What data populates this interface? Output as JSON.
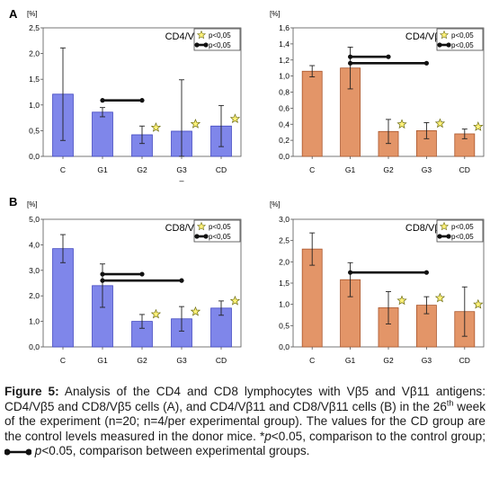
{
  "panel_letters": [
    "A",
    "B"
  ],
  "legend": {
    "star": "p<0,05",
    "connector": "p<0,05"
  },
  "chart_data": [
    {
      "type": "bar",
      "title": "CD4/Vβ5",
      "unit": "[%]",
      "color": "#7f86ea",
      "categories": [
        "C",
        "G1",
        "G2",
        "G3",
        "CD"
      ],
      "values": [
        1.21,
        0.86,
        0.42,
        0.49,
        0.59
      ],
      "errors": [
        0.9,
        0.09,
        0.17,
        1.0,
        0.4
      ],
      "ylim": [
        0,
        2.5
      ],
      "yticks": [
        "0,0",
        "0,5",
        "1,0",
        "1,5",
        "2,0",
        "2,5"
      ],
      "stars": [
        false,
        false,
        true,
        true,
        true
      ],
      "connectors": [
        {
          "from": "G1",
          "to": "G2"
        }
      ],
      "extra_label": "–"
    },
    {
      "type": "bar",
      "title": "CD4/Vβ11",
      "unit": "[%]",
      "color": "#e39568",
      "categories": [
        "C",
        "G1",
        "G2",
        "G3",
        "CD"
      ],
      "values": [
        1.06,
        1.1,
        0.31,
        0.32,
        0.28
      ],
      "errors": [
        0.07,
        0.26,
        0.15,
        0.1,
        0.06
      ],
      "ylim": [
        0,
        1.6
      ],
      "yticks": [
        "0,0",
        "0,2",
        "0,4",
        "0,6",
        "0,8",
        "1,0",
        "1,2",
        "1,4",
        "1,6"
      ],
      "stars": [
        false,
        false,
        true,
        true,
        true
      ],
      "connectors": [
        {
          "from": "G1",
          "to": "G2"
        },
        {
          "from": "G1",
          "to": "G3"
        }
      ]
    },
    {
      "type": "bar",
      "title": "CD8/Vβ5",
      "unit": "[%]",
      "color": "#7f86ea",
      "categories": [
        "C",
        "G1",
        "G2",
        "G3",
        "CD"
      ],
      "values": [
        3.85,
        2.4,
        1.0,
        1.1,
        1.52
      ],
      "errors": [
        0.55,
        0.85,
        0.27,
        0.48,
        0.28
      ],
      "ylim": [
        0,
        5
      ],
      "yticks": [
        "0,0",
        "1,0",
        "2,0",
        "3,0",
        "4,0",
        "5,0"
      ],
      "stars": [
        false,
        false,
        true,
        true,
        true
      ],
      "connectors": [
        {
          "from": "G1",
          "to": "G2"
        },
        {
          "from": "G1",
          "to": "G3"
        }
      ]
    },
    {
      "type": "bar",
      "title": "CD8/Vβ11",
      "unit": "[%]",
      "color": "#e39568",
      "categories": [
        "C",
        "G1",
        "G2",
        "G3",
        "CD"
      ],
      "values": [
        2.3,
        1.58,
        0.92,
        0.98,
        0.83
      ],
      "errors": [
        0.38,
        0.4,
        0.38,
        0.2,
        0.58
      ],
      "ylim": [
        0,
        3
      ],
      "yticks": [
        "0,0",
        "0,5",
        "1,0",
        "1,5",
        "2,0",
        "2,5",
        "3,0"
      ],
      "stars": [
        false,
        false,
        true,
        true,
        true
      ],
      "connectors": [
        {
          "from": "G1",
          "to": "G3"
        }
      ]
    }
  ],
  "caption": {
    "label": "Figure 5:",
    "part1": " Analysis of the CD4 and CD8 lymphocytes with Vβ5 and Vβ11 antigens: CD4/Vβ5 and CD8/Vβ5 cells (A), and CD4/Vβ11 and CD8/Vβ11 cells (B) in the 26",
    "sup": "th",
    "part2": " week of the experiment (n=20; n=4/per experimental group). The values for the CD group are the control levels measured in the donor mice. ",
    "star_text": "*",
    "p_italic": "p",
    "part3": "<0.05, comparison to the control group;",
    "p_italic2": "p",
    "part4": "<0.05, comparison between experimental groups."
  }
}
